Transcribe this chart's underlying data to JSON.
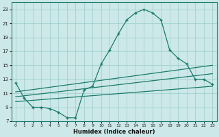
{
  "xlabel": "Humidex (Indice chaleur)",
  "xlim": [
    -0.5,
    23.5
  ],
  "ylim": [
    7,
    24
  ],
  "yticks": [
    7,
    9,
    11,
    13,
    15,
    17,
    19,
    21,
    23
  ],
  "xticks": [
    0,
    1,
    2,
    3,
    4,
    5,
    6,
    7,
    8,
    9,
    10,
    11,
    12,
    13,
    14,
    15,
    16,
    17,
    18,
    19,
    20,
    21,
    22,
    23
  ],
  "bg_color": "#cce8e8",
  "grid_color": "#99cccc",
  "line_color": "#1a7a6a",
  "main_x": [
    0,
    1,
    2,
    3,
    4,
    5,
    6,
    7,
    8,
    9,
    10,
    11,
    12,
    13,
    14,
    15,
    16,
    17,
    18,
    19,
    20,
    21,
    22,
    23
  ],
  "main_y": [
    12.5,
    10.3,
    9.0,
    9.0,
    8.8,
    8.3,
    7.5,
    7.5,
    11.5,
    12.0,
    15.2,
    17.2,
    19.5,
    21.5,
    22.5,
    23.0,
    22.5,
    21.5,
    17.2,
    16.0,
    15.2,
    13.0,
    13.0,
    12.3
  ],
  "line2_x": [
    0,
    23
  ],
  "line2_y": [
    9.8,
    12.0
  ],
  "line3_x": [
    0,
    23
  ],
  "line3_y": [
    10.5,
    13.8
  ],
  "line4_x": [
    0,
    23
  ],
  "line4_y": [
    11.2,
    15.0
  ]
}
